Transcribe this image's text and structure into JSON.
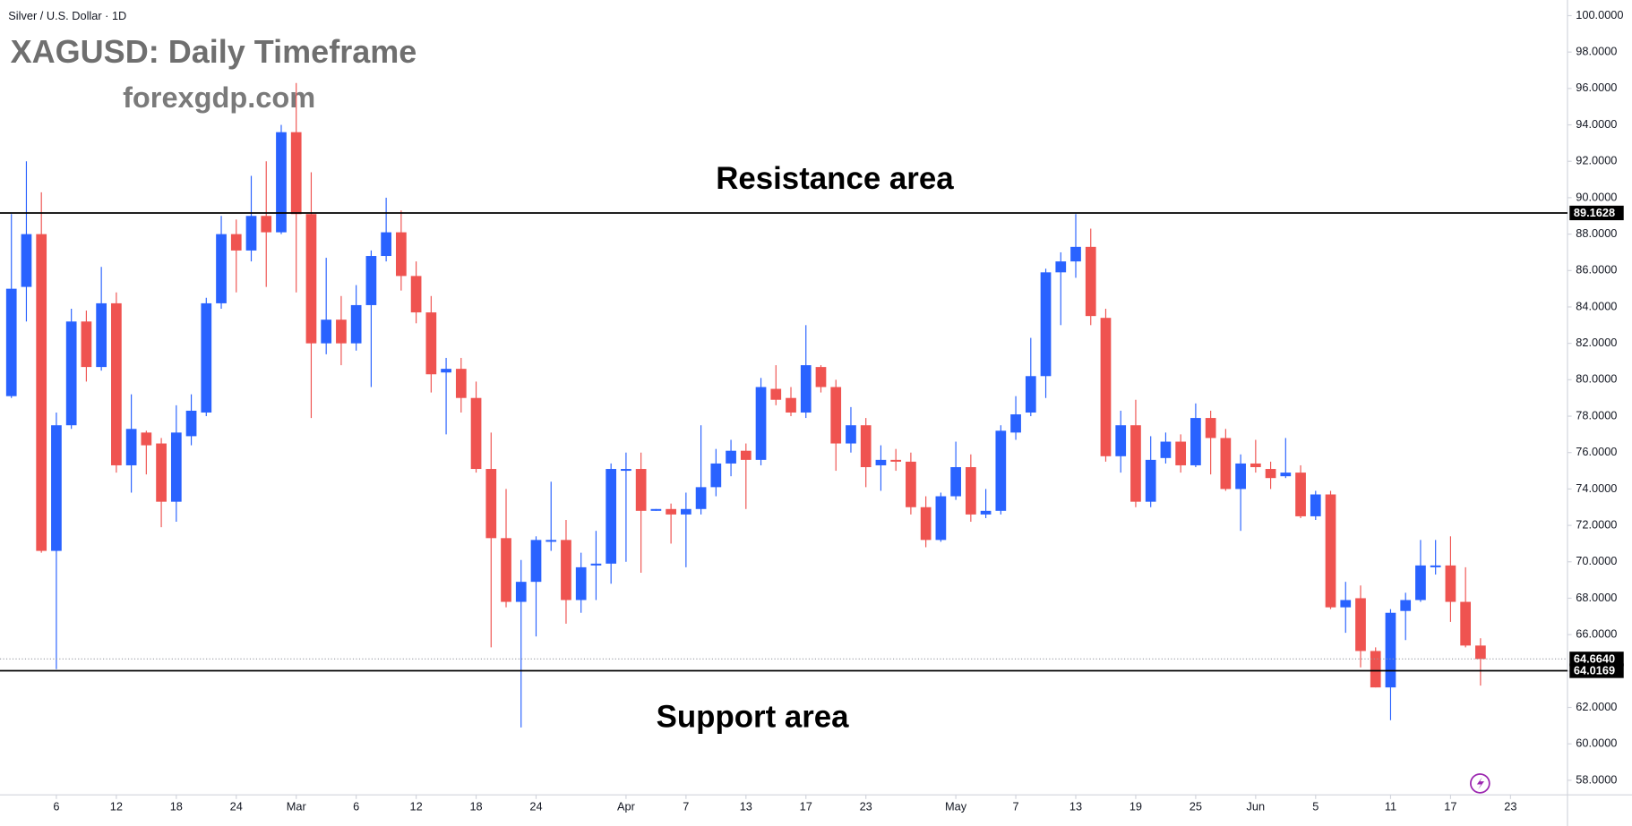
{
  "chart_data": {
    "type": "candlestick",
    "header": "Silver / U.S. Dollar · 1D",
    "title": "XAGUSD: Daily Timeframe",
    "subtitle": "forexgdp.com",
    "annotations": [
      "Resistance area",
      "Support area"
    ],
    "up_color": "#2962ff",
    "down_color": "#ef5350",
    "grid": false,
    "xlim": [
      -0.76,
      103.8
    ],
    "xticks": [
      {
        "value": 3,
        "label": "6"
      },
      {
        "value": 7,
        "label": "12"
      },
      {
        "value": 11,
        "label": "18"
      },
      {
        "value": 15,
        "label": "24"
      },
      {
        "value": 19,
        "label": "Mar"
      },
      {
        "value": 23,
        "label": "6"
      },
      {
        "value": 27,
        "label": "12"
      },
      {
        "value": 31,
        "label": "18"
      },
      {
        "value": 35,
        "label": "24"
      },
      {
        "value": 41,
        "label": "Apr"
      },
      {
        "value": 45,
        "label": "7"
      },
      {
        "value": 49,
        "label": "13"
      },
      {
        "value": 53,
        "label": "17"
      },
      {
        "value": 57,
        "label": "23"
      },
      {
        "value": 63,
        "label": "May"
      },
      {
        "value": 67,
        "label": "7"
      },
      {
        "value": 71,
        "label": "13"
      },
      {
        "value": 75,
        "label": "19"
      },
      {
        "value": 79,
        "label": "25"
      },
      {
        "value": 83,
        "label": "Jun"
      },
      {
        "value": 87,
        "label": "5"
      },
      {
        "value": 92,
        "label": "11"
      },
      {
        "value": 96,
        "label": "17"
      },
      {
        "value": 100,
        "label": "23"
      }
    ],
    "ylim": [
      57.2,
      100.86
    ],
    "yticks": [
      {
        "value": 58,
        "label": "58.0000"
      },
      {
        "value": 60,
        "label": "60.0000"
      },
      {
        "value": 62,
        "label": "62.0000"
      },
      {
        "value": 64,
        "label": "64.0000"
      },
      {
        "value": 66,
        "label": "66.0000"
      },
      {
        "value": 68,
        "label": "68.0000"
      },
      {
        "value": 70,
        "label": "70.0000"
      },
      {
        "value": 72,
        "label": "72.0000"
      },
      {
        "value": 74,
        "label": "74.0000"
      },
      {
        "value": 76,
        "label": "76.0000"
      },
      {
        "value": 78,
        "label": "78.0000"
      },
      {
        "value": 80,
        "label": "80.0000"
      },
      {
        "value": 82,
        "label": "82.0000"
      },
      {
        "value": 84,
        "label": "84.0000"
      },
      {
        "value": 86,
        "label": "86.0000"
      },
      {
        "value": 88,
        "label": "88.0000"
      },
      {
        "value": 90,
        "label": "90.0000"
      },
      {
        "value": 92,
        "label": "92.0000"
      },
      {
        "value": 94,
        "label": "94.0000"
      },
      {
        "value": 96,
        "label": "96.0000"
      },
      {
        "value": 98,
        "label": "98.0000"
      },
      {
        "value": 100,
        "label": "100.0000"
      }
    ],
    "hlines": [
      {
        "value": 89.1628,
        "label": "89.1628",
        "style": "solid"
      },
      {
        "value": 64.664,
        "label": "64.6640",
        "style": "dotted"
      },
      {
        "value": 64.0169,
        "label": "64.0169",
        "style": "solid"
      }
    ],
    "candles": {
      "open": [
        79.1,
        85.1,
        88.0,
        70.6,
        77.5,
        83.2,
        80.7,
        84.2,
        75.3,
        77.1,
        76.5,
        73.3,
        76.9,
        78.2,
        84.2,
        88.0,
        87.1,
        89.0,
        88.1,
        93.6,
        89.1,
        82.0,
        83.3,
        82.0,
        84.1,
        86.8,
        88.1,
        85.7,
        83.7,
        80.4,
        80.6,
        79.0,
        75.1,
        71.3,
        67.8,
        68.9,
        71.1,
        71.2,
        67.9,
        69.8,
        69.9,
        75.0,
        75.1,
        72.8,
        72.9,
        72.6,
        72.9,
        74.1,
        75.4,
        76.1,
        75.6,
        79.5,
        79.0,
        78.2,
        80.7,
        79.6,
        76.5,
        77.5,
        75.3,
        75.6,
        75.5,
        73.0,
        71.2,
        73.6,
        75.2,
        72.6,
        72.8,
        77.1,
        78.2,
        80.2,
        85.9,
        86.5,
        87.3,
        83.4,
        75.8,
        77.5,
        73.3,
        75.7,
        76.6,
        75.3,
        77.9,
        76.8,
        74.0,
        75.4,
        75.1,
        74.7,
        74.9,
        72.5,
        73.7,
        67.5,
        68.0,
        65.1,
        63.1,
        67.3,
        67.9,
        69.7,
        69.8,
        67.8,
        65.4
      ],
      "high": [
        89.1,
        92.0,
        90.3,
        78.2,
        83.9,
        83.8,
        86.2,
        84.8,
        79.2,
        77.2,
        76.8,
        78.6,
        79.2,
        84.5,
        89.0,
        88.8,
        91.2,
        92.0,
        94.0,
        96.3,
        91.4,
        86.7,
        84.6,
        85.2,
        87.1,
        90.0,
        89.3,
        86.5,
        84.6,
        81.2,
        81.2,
        79.9,
        77.1,
        74.0,
        70.1,
        71.4,
        74.4,
        72.3,
        70.5,
        71.7,
        75.4,
        76.0,
        76.0,
        72.9,
        73.2,
        73.8,
        77.5,
        76.2,
        76.7,
        76.5,
        80.1,
        80.8,
        79.6,
        83.0,
        80.8,
        80.0,
        78.5,
        77.9,
        76.4,
        76.2,
        76.0,
        73.6,
        73.8,
        76.6,
        75.9,
        74.0,
        77.5,
        79.1,
        82.3,
        86.1,
        87.0,
        89.1,
        88.3,
        83.9,
        78.3,
        78.9,
        76.9,
        77.1,
        77.0,
        78.7,
        78.3,
        77.3,
        75.9,
        76.7,
        75.5,
        76.8,
        75.3,
        73.9,
        73.9,
        68.9,
        68.7,
        65.3,
        67.4,
        68.3,
        71.2,
        71.2,
        71.4,
        69.7,
        65.8
      ],
      "low": [
        79.0,
        83.2,
        70.5,
        64.1,
        77.3,
        79.9,
        80.5,
        74.9,
        73.8,
        74.8,
        71.9,
        72.2,
        76.4,
        78.0,
        83.9,
        84.8,
        86.5,
        85.1,
        88.0,
        84.8,
        77.9,
        81.4,
        80.8,
        81.6,
        79.6,
        86.5,
        84.9,
        83.1,
        79.3,
        77.0,
        78.2,
        74.9,
        65.3,
        67.5,
        60.9,
        65.9,
        70.6,
        66.6,
        67.2,
        67.9,
        68.8,
        70.0,
        69.4,
        72.8,
        71.0,
        69.7,
        72.6,
        73.6,
        74.7,
        72.9,
        75.3,
        78.6,
        78.0,
        77.9,
        79.3,
        75.0,
        76.0,
        74.1,
        73.9,
        75.0,
        72.6,
        70.8,
        71.1,
        73.4,
        72.2,
        72.4,
        72.6,
        76.7,
        78.0,
        79.0,
        83.0,
        85.6,
        83.0,
        75.5,
        74.9,
        73.0,
        73.0,
        75.4,
        74.9,
        75.2,
        74.8,
        73.9,
        71.7,
        74.9,
        74.0,
        74.6,
        72.4,
        72.3,
        67.4,
        66.1,
        64.2,
        63.1,
        61.3,
        65.7,
        67.8,
        69.3,
        66.7,
        65.3,
        63.2
      ],
      "close": [
        85.0,
        88.0,
        70.6,
        77.5,
        83.2,
        80.7,
        84.2,
        75.3,
        77.3,
        76.4,
        73.3,
        77.1,
        78.3,
        84.2,
        88.0,
        87.1,
        89.0,
        88.1,
        93.6,
        89.1,
        82.0,
        83.3,
        82.0,
        84.1,
        86.8,
        88.1,
        85.7,
        83.7,
        80.3,
        80.6,
        79.0,
        75.1,
        71.3,
        67.8,
        68.9,
        71.2,
        71.2,
        67.9,
        69.7,
        69.9,
        75.1,
        75.1,
        72.8,
        72.9,
        72.6,
        72.9,
        74.1,
        75.4,
        76.1,
        75.6,
        79.6,
        78.9,
        78.2,
        80.8,
        79.6,
        76.5,
        77.5,
        75.2,
        75.6,
        75.5,
        73.0,
        71.2,
        73.6,
        75.2,
        72.6,
        72.8,
        77.2,
        78.1,
        80.2,
        85.9,
        86.5,
        87.3,
        83.5,
        75.8,
        77.5,
        73.3,
        75.6,
        76.6,
        75.3,
        77.9,
        76.8,
        74.0,
        75.4,
        75.2,
        74.6,
        74.9,
        72.5,
        73.7,
        67.5,
        67.9,
        65.1,
        63.1,
        67.2,
        67.9,
        69.8,
        69.8,
        67.8,
        65.4,
        64.66
      ]
    }
  }
}
